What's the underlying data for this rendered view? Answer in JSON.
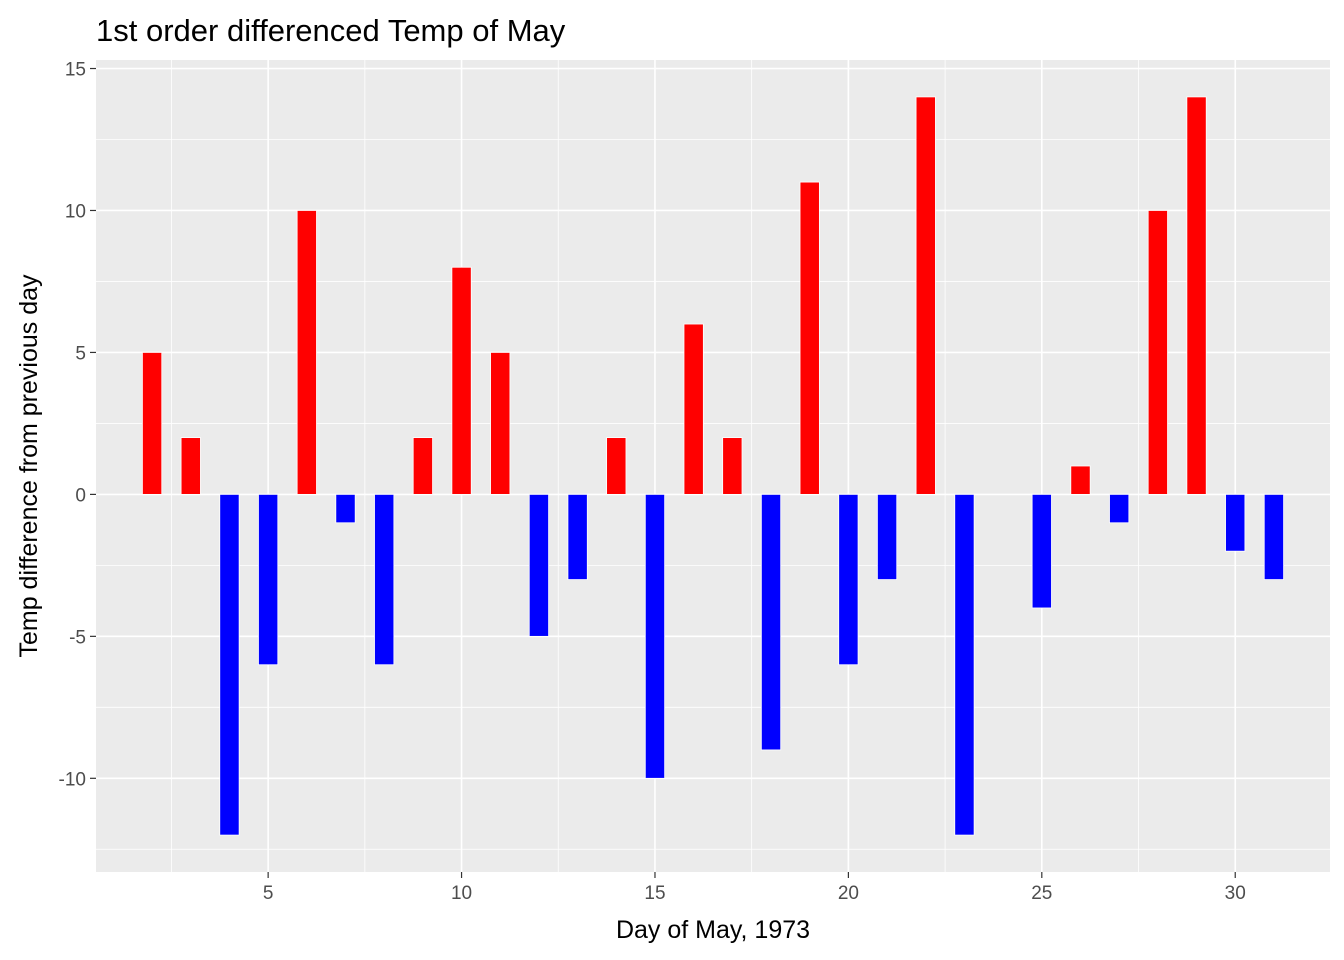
{
  "chart_data": {
    "type": "bar",
    "title": "1st order differenced Temp of May",
    "xlabel": "Day of May, 1973",
    "ylabel": "Temp difference from previous day",
    "x": [
      2,
      3,
      4,
      5,
      6,
      7,
      8,
      9,
      10,
      11,
      12,
      13,
      14,
      15,
      16,
      17,
      18,
      19,
      20,
      21,
      22,
      23,
      24,
      25,
      26,
      27,
      28,
      29,
      30,
      31
    ],
    "values": [
      5,
      2,
      -12,
      -6,
      10,
      -1,
      -6,
      2,
      8,
      5,
      -5,
      -3,
      2,
      -10,
      6,
      2,
      -9,
      11,
      -6,
      -3,
      14,
      -12,
      0,
      -4,
      1,
      -1,
      10,
      14,
      -2,
      -3
    ],
    "xlim": [
      0.55,
      32.45
    ],
    "ylim": [
      -13.3,
      15.3
    ],
    "xticks": [
      5,
      10,
      15,
      20,
      25,
      30
    ],
    "yticks": [
      -10,
      -5,
      0,
      5,
      10,
      15
    ],
    "xtick_labels": [
      "5",
      "10",
      "15",
      "20",
      "25",
      "30"
    ],
    "ytick_labels": [
      "-10",
      "-5",
      "0",
      "5",
      "10",
      "15"
    ],
    "grid": true,
    "legend": "none",
    "colors": {
      "positive": "#ff0000",
      "negative": "#0000ff",
      "panel_background": "#ebebeb",
      "grid": "#ffffff",
      "tick_label": "#4d4d4d"
    }
  }
}
